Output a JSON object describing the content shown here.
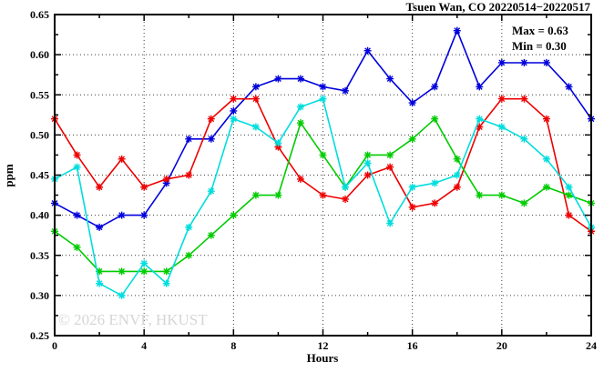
{
  "chart_data": {
    "type": "line",
    "title": "Tsuen Wan, CO 20220514−20220517",
    "xlabel": "Hours",
    "ylabel": "ppm",
    "xlim": [
      0,
      24
    ],
    "ylim": [
      0.25,
      0.65
    ],
    "x_major_ticks": [
      0,
      4,
      8,
      12,
      16,
      20,
      24
    ],
    "x_minor_ticks": [
      2,
      6,
      10,
      14,
      18,
      22
    ],
    "y_major_ticks": [
      0.25,
      0.3,
      0.35,
      0.4,
      0.45,
      0.5,
      0.55,
      0.6,
      0.65
    ],
    "y_minor_ticks": [
      0.275,
      0.325,
      0.375,
      0.425,
      0.475,
      0.525,
      0.575,
      0.625
    ],
    "grid_vertical_at": [
      4,
      8,
      12,
      16,
      20
    ],
    "grid_horizontal_at": [
      0.3,
      0.35,
      0.4,
      0.45,
      0.5,
      0.55,
      0.6
    ],
    "grid": true,
    "legend_position": "none",
    "marker": "star",
    "annotations": {
      "max": "Max = 0.63",
      "min": "Min = 0.30"
    },
    "x": [
      0,
      1,
      2,
      3,
      4,
      5,
      6,
      7,
      8,
      9,
      10,
      11,
      12,
      13,
      14,
      15,
      16,
      17,
      18,
      19,
      20,
      21,
      22,
      23,
      24
    ],
    "series": [
      {
        "name": "series-blue",
        "color": "#0000dd",
        "values": [
          0.415,
          0.4,
          0.385,
          0.4,
          0.4,
          0.44,
          0.495,
          0.495,
          0.53,
          0.56,
          0.57,
          0.57,
          0.56,
          0.555,
          0.605,
          0.57,
          0.54,
          0.56,
          0.63,
          0.56,
          0.59,
          0.59,
          0.59,
          0.56,
          0.52
        ]
      },
      {
        "name": "series-red",
        "color": "#ee0000",
        "values": [
          0.52,
          0.475,
          0.435,
          0.47,
          0.435,
          0.445,
          0.45,
          0.52,
          0.545,
          0.545,
          0.485,
          0.445,
          0.425,
          0.42,
          0.45,
          0.46,
          0.41,
          0.415,
          0.435,
          0.51,
          0.545,
          0.545,
          0.52,
          0.4,
          0.38
        ]
      },
      {
        "name": "series-green",
        "color": "#00cc00",
        "values": [
          0.38,
          0.36,
          0.33,
          0.33,
          0.33,
          0.33,
          0.35,
          0.375,
          0.4,
          0.425,
          0.425,
          0.515,
          0.475,
          0.435,
          0.475,
          0.475,
          0.495,
          0.52,
          0.47,
          0.425,
          0.425,
          0.415,
          0.435,
          0.425,
          0.415
        ]
      },
      {
        "name": "series-cyan",
        "color": "#00dddd",
        "values": [
          0.445,
          0.46,
          0.315,
          0.3,
          0.34,
          0.315,
          0.385,
          0.43,
          0.52,
          0.51,
          0.49,
          0.535,
          0.545,
          0.435,
          0.465,
          0.39,
          0.435,
          0.44,
          0.45,
          0.52,
          0.51,
          0.495,
          0.47,
          0.435,
          0.385
        ]
      }
    ]
  },
  "watermark": {
    "text": "© 2026 ENVF, HKUST",
    "color": "#d6d6d6"
  },
  "frame": {
    "color": "#000000",
    "grid_color": "#3c3c3c"
  }
}
